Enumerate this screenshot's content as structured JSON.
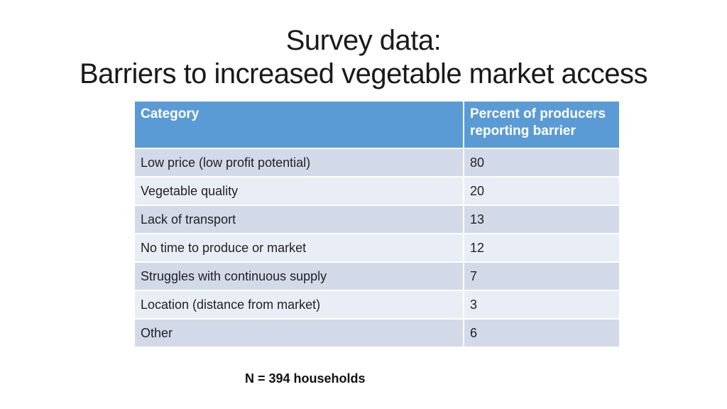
{
  "slide": {
    "title_line1": "Survey data:",
    "title_line2": "Barriers to increased vegetable market access",
    "footnote": "N = 394 households"
  },
  "table": {
    "columns": [
      "Category",
      "Percent of producers reporting barrier"
    ],
    "rows": [
      {
        "category": "Low price (low profit potential)",
        "percent": "80"
      },
      {
        "category": "Vegetable quality",
        "percent": "20"
      },
      {
        "category": "Lack of transport",
        "percent": "13"
      },
      {
        "category": "No time to produce or market",
        "percent": "12"
      },
      {
        "category": "Struggles with continuous supply",
        "percent": "7"
      },
      {
        "category": "Location (distance from market)",
        "percent": "3"
      },
      {
        "category": "Other",
        "percent": "6"
      }
    ]
  },
  "colors": {
    "header_bg": "#5B9BD5",
    "header_text": "#FFFFFF",
    "row_band_dark": "#D2DAE9",
    "row_band_light": "#E9EDF5",
    "body_text": "#222222",
    "title_text": "#1A1A1A",
    "background": "#FFFFFF"
  }
}
